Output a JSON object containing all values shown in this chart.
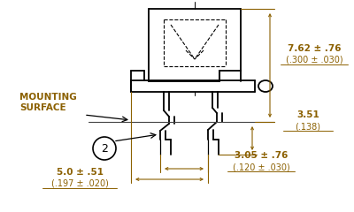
{
  "bg_color": "#ffffff",
  "line_color": "#000000",
  "dim_color": "#8B6000",
  "figsize": [
    4.0,
    2.4
  ],
  "dpi": 100,
  "dim_top_right_1": "7.62 ± .76",
  "dim_top_right_2": "(.300 ± .030)",
  "dim_mid_right_1": "3.51",
  "dim_mid_right_2": "(.138)",
  "dim_bot_right_1": "3.05 ± .76",
  "dim_bot_right_2": "(.120 ± .030)",
  "dim_bot_left_1": "5.0 ± .51",
  "dim_bot_left_2": "(.197 ± .020)"
}
